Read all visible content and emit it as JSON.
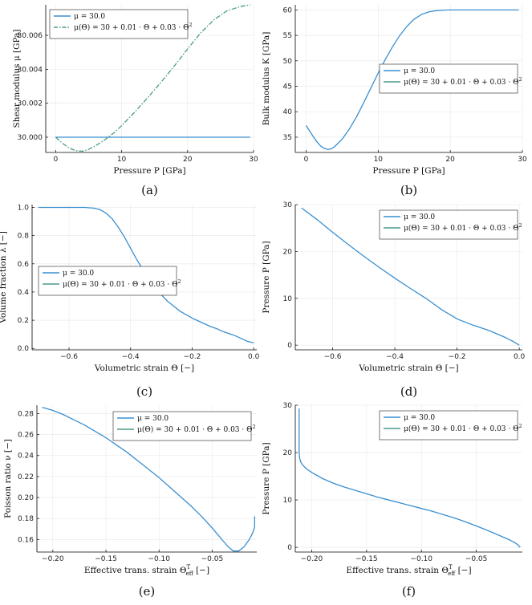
{
  "colors": {
    "series_solid": "#3a8fd0",
    "series_dashdot": "#4a9a8a",
    "axis": "#000000",
    "grid": "#e8e8e8"
  },
  "chart_data": [
    {
      "type": "line",
      "caption": "(a)",
      "xlabel": "Pressure P [GPa]",
      "ylabel": "Shear modulus μ [GPa]",
      "xlim": [
        -1.5,
        30
      ],
      "ylim": [
        29.9991,
        30.0078
      ],
      "xticks": [
        0,
        10,
        20,
        30
      ],
      "yticks": [
        30.0,
        30.002,
        30.004,
        30.006
      ],
      "xticklabels": [
        "0",
        "10",
        "20",
        "30"
      ],
      "yticklabels": [
        "30.000",
        "30.002",
        "30.004",
        "30.006"
      ],
      "legend": "top-left",
      "series": [
        {
          "name": "μ = 30.0",
          "style": "solid",
          "x": [
            0,
            29.5
          ],
          "y": [
            30.0,
            30.0
          ]
        },
        {
          "name": "μ(Θ) = 30 + 0.01 · Θ + 0.03 · Θ²",
          "style": "dashdot",
          "x": [
            0,
            1,
            2,
            3,
            4,
            5,
            6,
            7,
            8,
            9,
            10,
            12,
            14,
            16,
            18,
            20,
            22,
            24,
            26,
            28,
            29.5
          ],
          "y": [
            30.0,
            29.99965,
            29.99937,
            29.99921,
            29.99917,
            29.99928,
            29.99948,
            29.99973,
            30.0,
            30.00031,
            30.00068,
            30.00148,
            30.00235,
            30.00325,
            30.0042,
            30.0052,
            30.00615,
            30.00692,
            30.00745,
            30.0077,
            30.0078
          ]
        }
      ]
    },
    {
      "type": "line",
      "caption": "(b)",
      "xlabel": "Pressure P [GPa]",
      "ylabel": "Bulk modulus K [GPa]",
      "xlim": [
        -1.5,
        30
      ],
      "ylim": [
        32,
        61
      ],
      "xticks": [
        0,
        10,
        20,
        30
      ],
      "yticks": [
        35,
        40,
        45,
        50,
        55,
        60
      ],
      "xticklabels": [
        "0",
        "10",
        "20",
        "30"
      ],
      "yticklabels": [
        "35",
        "40",
        "45",
        "50",
        "55",
        "60"
      ],
      "legend": "center-right",
      "series": [
        {
          "name": "μ = 30.0",
          "style": "solid",
          "x": [
            0,
            0.5,
            1,
            1.5,
            2,
            2.5,
            3,
            3.5,
            4,
            5,
            6,
            7,
            8,
            9,
            10,
            11,
            12,
            13,
            14,
            15,
            16,
            17,
            18,
            19,
            20,
            22,
            25,
            29.5
          ],
          "y": [
            37.3,
            36.2,
            35.1,
            34.1,
            33.3,
            32.8,
            32.6,
            32.7,
            33.2,
            34.6,
            36.6,
            39.0,
            41.8,
            44.7,
            47.6,
            50.3,
            52.8,
            55.0,
            56.8,
            58.2,
            59.1,
            59.6,
            59.85,
            59.95,
            60.0,
            60.0,
            60.0,
            60.0
          ]
        },
        {
          "name": "μ(Θ) = 30 + 0.01 · Θ + 0.03 · Θ²",
          "style": "solid",
          "x": [],
          "y": []
        }
      ]
    },
    {
      "type": "line",
      "caption": "(c)",
      "xlabel": "Volumetric strain Θ [−]",
      "ylabel": "Volume fraction λ [−]",
      "xlim": [
        -0.72,
        0.01
      ],
      "ylim": [
        -0.01,
        1.02
      ],
      "xticks": [
        -0.6,
        -0.4,
        -0.2,
        0.0
      ],
      "yticks": [
        0.0,
        0.2,
        0.4,
        0.6,
        0.8,
        1.0
      ],
      "xticklabels": [
        "−0.6",
        "−0.4",
        "−0.2",
        "0.0"
      ],
      "yticklabels": [
        "0.0",
        "0.2",
        "0.4",
        "0.6",
        "0.8",
        "1.0"
      ],
      "legend": "center-left",
      "series": [
        {
          "name": "μ = 30.0",
          "style": "solid",
          "x": [
            -0.7,
            -0.6,
            -0.55,
            -0.52,
            -0.5,
            -0.48,
            -0.46,
            -0.44,
            -0.42,
            -0.4,
            -0.38,
            -0.36,
            -0.34,
            -0.32,
            -0.3,
            -0.28,
            -0.26,
            -0.24,
            -0.22,
            -0.2,
            -0.18,
            -0.16,
            -0.14,
            -0.12,
            -0.1,
            -0.08,
            -0.06,
            -0.04,
            -0.02,
            0.0
          ],
          "y": [
            1.0,
            1.0,
            1.0,
            0.995,
            0.985,
            0.96,
            0.92,
            0.86,
            0.79,
            0.71,
            0.63,
            0.56,
            0.49,
            0.43,
            0.38,
            0.335,
            0.3,
            0.265,
            0.24,
            0.215,
            0.195,
            0.175,
            0.155,
            0.14,
            0.12,
            0.105,
            0.09,
            0.07,
            0.05,
            0.04
          ]
        },
        {
          "name": "μ(Θ) = 30 + 0.01 · Θ + 0.03 · Θ²",
          "style": "solid",
          "x": [],
          "y": []
        }
      ]
    },
    {
      "type": "line",
      "caption": "(d)",
      "xlabel": "Volumetric strain Θ [−]",
      "ylabel": "Pressure P [GPa]",
      "xlim": [
        -0.72,
        0.01
      ],
      "ylim": [
        -1,
        30
      ],
      "xticks": [
        -0.6,
        -0.4,
        -0.2,
        0.0
      ],
      "yticks": [
        0,
        10,
        20,
        30
      ],
      "xticklabels": [
        "−0.6",
        "−0.4",
        "−0.2",
        "0.0"
      ],
      "yticklabels": [
        "0",
        "10",
        "20",
        "30"
      ],
      "legend": "top-right",
      "series": [
        {
          "name": "μ = 30.0",
          "style": "solid",
          "x": [
            -0.7,
            -0.65,
            -0.6,
            -0.55,
            -0.5,
            -0.45,
            -0.4,
            -0.35,
            -0.3,
            -0.25,
            -0.2,
            -0.15,
            -0.1,
            -0.05,
            -0.02,
            0.0
          ],
          "y": [
            29.3,
            26.8,
            24.1,
            21.5,
            19.0,
            16.6,
            14.3,
            12.1,
            10.0,
            7.6,
            5.6,
            4.3,
            3.2,
            1.8,
            0.8,
            0.0
          ]
        },
        {
          "name": "μ(Θ) = 30 + 0.01 · Θ + 0.03 · Θ²",
          "style": "solid",
          "x": [],
          "y": []
        }
      ]
    },
    {
      "type": "line",
      "caption": "(e)",
      "xlabel": "Effective trans. strain Θ_eff^T [−]",
      "ylabel": "Poisson ratio ν [−]",
      "xlim": [
        -0.215,
        -0.008
      ],
      "ylim": [
        0.148,
        0.288
      ],
      "xticks": [
        -0.2,
        -0.15,
        -0.1,
        -0.05
      ],
      "yticks": [
        0.16,
        0.18,
        0.2,
        0.22,
        0.24,
        0.26,
        0.28
      ],
      "xticklabels": [
        "−0.20",
        "−0.15",
        "−0.10",
        "−0.05"
      ],
      "yticklabels": [
        "0.16",
        "0.18",
        "0.20",
        "0.22",
        "0.24",
        "0.26",
        "0.28"
      ],
      "legend": "top-right",
      "series": [
        {
          "name": "μ = 30.0",
          "style": "solid",
          "x": [
            -0.21,
            -0.2,
            -0.19,
            -0.18,
            -0.17,
            -0.16,
            -0.15,
            -0.14,
            -0.13,
            -0.12,
            -0.11,
            -0.1,
            -0.09,
            -0.08,
            -0.07,
            -0.06,
            -0.05,
            -0.045,
            -0.04,
            -0.035,
            -0.03,
            -0.025,
            -0.02,
            -0.015,
            -0.012,
            -0.01,
            -0.01
          ],
          "y": [
            0.286,
            0.283,
            0.279,
            0.274,
            0.269,
            0.263,
            0.257,
            0.25,
            0.243,
            0.235,
            0.227,
            0.219,
            0.21,
            0.201,
            0.192,
            0.182,
            0.171,
            0.165,
            0.159,
            0.153,
            0.149,
            0.149,
            0.153,
            0.16,
            0.166,
            0.172,
            0.182
          ]
        },
        {
          "name": "μ(Θ) = 30 + 0.01 · Θ + 0.03 · Θ²",
          "style": "solid",
          "x": [],
          "y": []
        }
      ]
    },
    {
      "type": "line",
      "caption": "(f)",
      "xlabel": "Effective trans. strain Θ_eff^T [−]",
      "ylabel": "Pressure P [GPa]",
      "xlim": [
        -0.215,
        -0.008
      ],
      "ylim": [
        -1,
        30
      ],
      "xticks": [
        -0.2,
        -0.15,
        -0.1,
        -0.05
      ],
      "yticks": [
        0,
        10,
        20,
        30
      ],
      "xticklabels": [
        "−0.20",
        "−0.15",
        "−0.10",
        "−0.05"
      ],
      "yticklabels": [
        "0",
        "10",
        "20",
        "30"
      ],
      "legend": "top-right",
      "series": [
        {
          "name": "μ = 30.0",
          "style": "solid",
          "x": [
            -0.2115,
            -0.2115,
            -0.211,
            -0.21,
            -0.208,
            -0.205,
            -0.2,
            -0.19,
            -0.18,
            -0.17,
            -0.16,
            -0.15,
            -0.14,
            -0.13,
            -0.12,
            -0.11,
            -0.1,
            -0.09,
            -0.08,
            -0.07,
            -0.06,
            -0.05,
            -0.04,
            -0.03,
            -0.02,
            -0.015,
            -0.012,
            -0.01
          ],
          "y": [
            29.3,
            20.0,
            18.8,
            18.0,
            17.3,
            16.6,
            15.8,
            14.5,
            13.5,
            12.7,
            12.0,
            11.3,
            10.6,
            10.0,
            9.4,
            8.8,
            8.2,
            7.6,
            6.9,
            6.2,
            5.4,
            4.5,
            3.6,
            2.6,
            1.6,
            1.0,
            0.5,
            0.0
          ]
        },
        {
          "name": "μ(Θ) = 30 + 0.01 · Θ + 0.03 · Θ²",
          "style": "solid",
          "x": [],
          "y": []
        }
      ]
    }
  ]
}
